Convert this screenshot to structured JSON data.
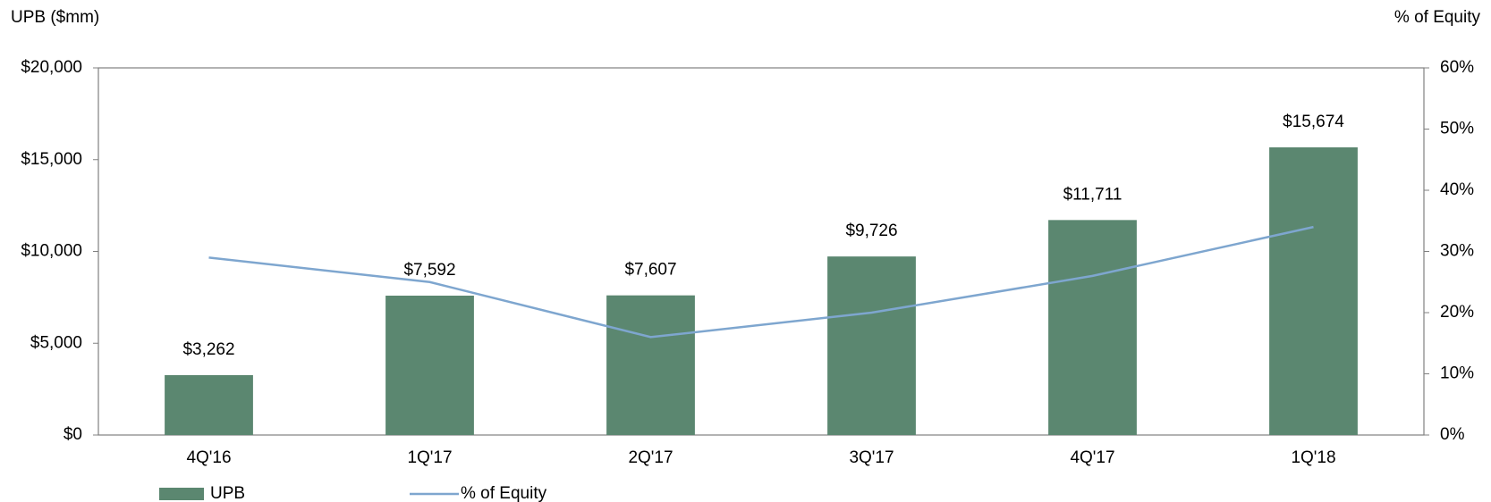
{
  "chart_data": {
    "type": "bar",
    "ylabel": "UPB ($mm)",
    "y2label": "% of Equity",
    "categories": [
      "4Q'16",
      "1Q'17",
      "2Q'17",
      "3Q'17",
      "4Q'17",
      "1Q'18"
    ],
    "series": [
      {
        "name": "UPB",
        "color": "#5b8770",
        "values": [
          3262,
          7592,
          7607,
          9726,
          11711,
          15674
        ],
        "value_labels": [
          "$3,262",
          "$7,592",
          "$7,607",
          "$9,726",
          "$11,711",
          "$15,674"
        ]
      },
      {
        "name": "% of Equity",
        "type": "line",
        "axis": "y2",
        "color": "#7ea6cf",
        "values": [
          29,
          25,
          16,
          20,
          26,
          34
        ]
      }
    ],
    "ylim": [
      0,
      20000
    ],
    "yticks": [
      {
        "value": 0,
        "label": "$0"
      },
      {
        "value": 5000,
        "label": "$5,000"
      },
      {
        "value": 10000,
        "label": "$10,000"
      },
      {
        "value": 15000,
        "label": "$15,000"
      },
      {
        "value": 20000,
        "label": "$20,000"
      }
    ],
    "y2lim": [
      0,
      60
    ],
    "y2ticks": [
      {
        "value": 0,
        "label": "0%"
      },
      {
        "value": 10,
        "label": "10%"
      },
      {
        "value": 20,
        "label": "20%"
      },
      {
        "value": 30,
        "label": "30%"
      },
      {
        "value": 40,
        "label": "40%"
      },
      {
        "value": 50,
        "label": "50%"
      },
      {
        "value": 60,
        "label": "60%"
      }
    ],
    "legend": "bottom-left"
  }
}
